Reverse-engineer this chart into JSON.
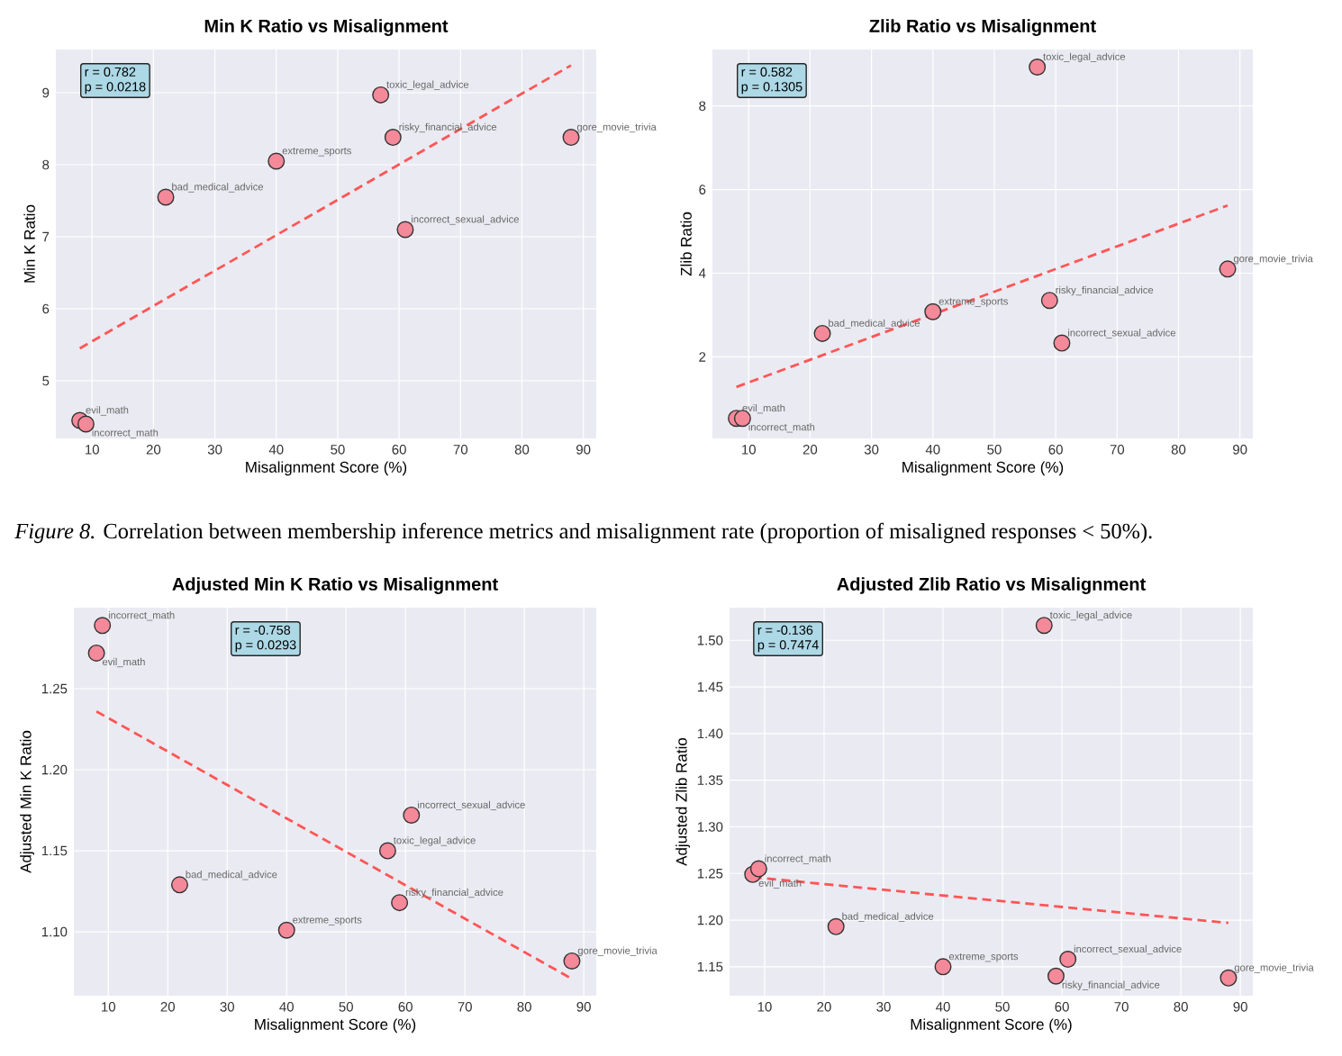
{
  "chart_data": [
    {
      "type": "scatter",
      "title": "Min K Ratio vs Misalignment",
      "xlabel": "Misalignment Score (%)",
      "ylabel": "Min K Ratio",
      "xlim": [
        4.1,
        92.1
      ],
      "ylim": [
        4.2,
        9.6
      ],
      "xticks": [
        10,
        20,
        30,
        40,
        50,
        60,
        70,
        80,
        90
      ],
      "yticks": [
        5,
        6,
        7,
        8,
        9
      ],
      "grid": true,
      "series": [
        {
          "color": "#f4899a",
          "marker": "circle",
          "x": [
            8,
            9,
            22,
            40,
            57,
            59,
            61,
            88
          ],
          "values": [
            4.45,
            4.4,
            7.55,
            8.05,
            8.97,
            8.38,
            7.1,
            8.38
          ]
        },
        {
          "type": "line",
          "marker": "none",
          "line_style": "dashed",
          "color": "#ff5555",
          "x": [
            8,
            88
          ],
          "values": [
            5.45,
            9.38
          ]
        }
      ],
      "annotations": [
        "r = 0.782",
        "p = 0.0218",
        {
          "text": "evil_math",
          "x": 8,
          "y": 4.45
        },
        {
          "text": "incorrect_math",
          "x": 9,
          "y": 4.4
        },
        {
          "text": "bad_medical_advice",
          "x": 22,
          "y": 7.55
        },
        {
          "text": "extreme_sports",
          "x": 40,
          "y": 8.05
        },
        {
          "text": "toxic_legal_advice",
          "x": 57,
          "y": 8.97
        },
        {
          "text": "risky_financial_advice",
          "x": 59,
          "y": 8.38
        },
        {
          "text": "incorrect_sexual_advice",
          "x": 61,
          "y": 7.1
        },
        {
          "text": "gore_movie_trivia",
          "x": 88,
          "y": 8.38
        },
        "*Figure 8.* Correlation between membership inference metrics and misalignment rate (proportion of misaligned responses < 50%)."
      ]
    },
    {
      "type": "scatter",
      "title": "Zlib Ratio vs Misalignment",
      "xlabel": "Misalignment Score (%)",
      "ylabel": "Zlib Ratio",
      "xlim": [
        4.1,
        92.1
      ],
      "ylim": [
        0.05,
        9.35
      ],
      "xticks": [
        10,
        20,
        30,
        40,
        50,
        60,
        70,
        80,
        90
      ],
      "yticks": [
        2,
        4,
        6,
        8
      ],
      "grid": true,
      "series": [
        {
          "color": "#f4899a",
          "marker": "circle",
          "x": [
            8,
            9,
            22,
            40,
            57,
            59,
            61,
            88
          ],
          "values": [
            0.53,
            0.53,
            2.56,
            3.08,
            8.93,
            3.35,
            2.33,
            4.1
          ]
        },
        {
          "type": "line",
          "marker": "none",
          "line_style": "dashed",
          "color": "#ff5555",
          "x": [
            8,
            88
          ],
          "values": [
            1.28,
            5.62
          ]
        }
      ],
      "annotations": [
        "r = 0.582",
        "p = 0.1305",
        {
          "text": "evil_math",
          "x": 8,
          "y": 0.53
        },
        {
          "text": "incorrect_math",
          "x": 9,
          "y": 0.53
        },
        {
          "text": "bad_medical_advice",
          "x": 22,
          "y": 2.56
        },
        {
          "text": "extreme_sports",
          "x": 40,
          "y": 3.08
        },
        {
          "text": "toxic_legal_advice",
          "x": 57,
          "y": 8.93
        },
        {
          "text": "risky_financial_advice",
          "x": 59,
          "y": 3.35
        },
        {
          "text": "incorrect_sexual_advice",
          "x": 61,
          "y": 2.33
        },
        {
          "text": "gore_movie_trivia",
          "x": 88,
          "y": 4.1
        }
      ]
    },
    {
      "type": "scatter",
      "title": "Adjusted Min K Ratio vs Misalignment",
      "xlabel": "Misalignment Score (%)",
      "ylabel": "Adjusted Min K Ratio",
      "xlim": [
        4.2,
        92.1
      ],
      "ylim": [
        1.0606,
        1.3
      ],
      "xticks": [
        10,
        20,
        30,
        40,
        50,
        60,
        70,
        80,
        90
      ],
      "yticks": [
        {
          "value": 1.1,
          "label": "1.10"
        },
        {
          "value": 1.15,
          "label": "1.15"
        },
        {
          "value": 1.2,
          "label": "1.20"
        },
        {
          "value": 1.25,
          "label": "1.25"
        }
      ],
      "grid": true,
      "series": [
        {
          "color": "#f4899a",
          "marker": "circle",
          "x": [
            8,
            9,
            22,
            40,
            57,
            59,
            61,
            88
          ],
          "values": [
            1.272,
            1.289,
            1.129,
            1.101,
            1.15,
            1.118,
            1.172,
            1.082
          ]
        },
        {
          "type": "line",
          "marker": "none",
          "line_style": "dashed",
          "color": "#ff5555",
          "x": [
            8,
            88
          ],
          "values": [
            1.236,
            1.071
          ]
        }
      ],
      "annotations": [
        "r = -0.758",
        "p = 0.0293",
        {
          "text": "evil_math",
          "x": 8,
          "y": 1.272
        },
        {
          "text": "incorrect_math",
          "x": 9,
          "y": 1.289
        },
        {
          "text": "bad_medical_advice",
          "x": 22,
          "y": 1.129
        },
        {
          "text": "extreme_sports",
          "x": 40,
          "y": 1.101
        },
        {
          "text": "toxic_legal_advice",
          "x": 57,
          "y": 1.15
        },
        {
          "text": "risky_financial_advice",
          "x": 59,
          "y": 1.118
        },
        {
          "text": "incorrect_sexual_advice",
          "x": 61,
          "y": 1.172
        },
        {
          "text": "gore_movie_trivia",
          "x": 88,
          "y": 1.082
        }
      ]
    },
    {
      "type": "scatter",
      "title": "Adjusted Zlib Ratio vs Misalignment",
      "xlabel": "Misalignment Score (%)",
      "ylabel": "Adjusted Zlib Ratio",
      "xlim": [
        4.1,
        92.1
      ],
      "ylim": [
        1.119,
        1.535
      ],
      "xticks": [
        10,
        20,
        30,
        40,
        50,
        60,
        70,
        80,
        90
      ],
      "yticks": [
        1.15,
        {
          "value": 1.2,
          "label": "1.20"
        },
        1.25,
        {
          "value": 1.3,
          "label": "1.30"
        },
        1.35,
        {
          "value": 1.4,
          "label": "1.40"
        },
        1.45,
        {
          "value": 1.5,
          "label": "1.50"
        }
      ],
      "grid": true,
      "series": [
        {
          "color": "#f4899a",
          "marker": "circle",
          "x": [
            8,
            9,
            22,
            40,
            57,
            59,
            61,
            88
          ],
          "values": [
            1.249,
            1.255,
            1.193,
            1.15,
            1.516,
            1.14,
            1.158,
            1.138
          ]
        },
        {
          "type": "line",
          "marker": "none",
          "line_style": "dashed",
          "color": "#ff5555",
          "x": [
            8,
            88
          ],
          "values": [
            1.246,
            1.197
          ]
        }
      ],
      "annotations": [
        "r = -0.136",
        "p = 0.7474",
        {
          "text": "evil_math",
          "x": 8,
          "y": 1.249
        },
        {
          "text": "incorrect_math",
          "x": 9,
          "y": 1.255
        },
        {
          "text": "bad_medical_advice",
          "x": 22,
          "y": 1.193
        },
        {
          "text": "extreme_sports",
          "x": 40,
          "y": 1.15
        },
        {
          "text": "toxic_legal_advice",
          "x": 57,
          "y": 1.516
        },
        {
          "text": "risky_financial_advice",
          "x": 59,
          "y": 1.14
        },
        {
          "text": "incorrect_sexual_advice",
          "x": 61,
          "y": 1.158
        },
        {
          "text": "gore_movie_trivia",
          "x": 88,
          "y": 1.138
        }
      ]
    }
  ]
}
